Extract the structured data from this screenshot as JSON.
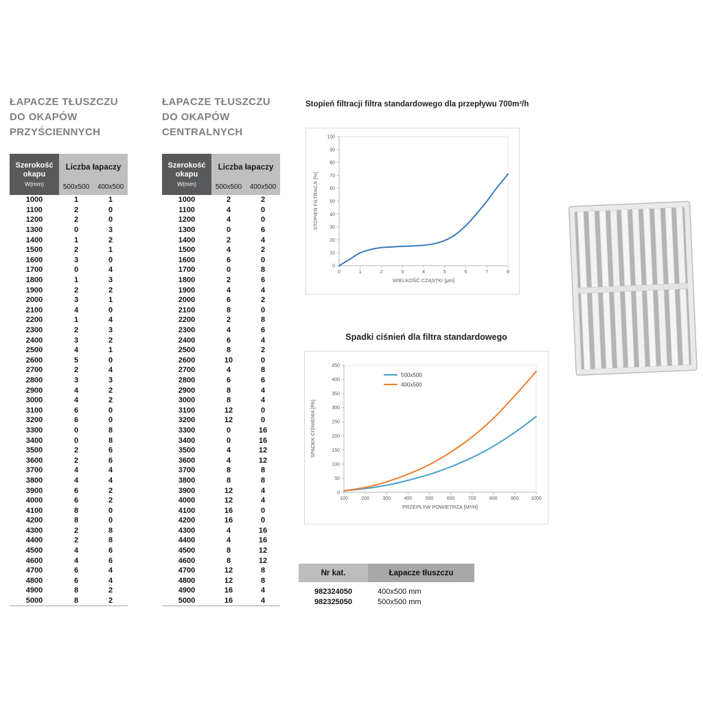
{
  "tables": {
    "wall": {
      "title_lines": [
        "ŁAPACZE TŁUSZCZU",
        "DO OKAPÓW",
        "PRZYŚCIENNYCH"
      ],
      "header": {
        "width_label": "Szerokość okapu",
        "width_unit": "W(mm)",
        "group_label": "Liczba łapaczy",
        "sub1": "500x500",
        "sub2": "400x500"
      },
      "rows": [
        [
          1000,
          1,
          1
        ],
        [
          1100,
          2,
          0
        ],
        [
          1200,
          2,
          0
        ],
        [
          1300,
          0,
          3
        ],
        [
          1400,
          1,
          2
        ],
        [
          1500,
          2,
          1
        ],
        [
          1600,
          3,
          0
        ],
        [
          1700,
          0,
          4
        ],
        [
          1800,
          1,
          3
        ],
        [
          1900,
          2,
          2
        ],
        [
          2000,
          3,
          1
        ],
        [
          2100,
          4,
          0
        ],
        [
          2200,
          1,
          4
        ],
        [
          2300,
          2,
          3
        ],
        [
          2400,
          3,
          2
        ],
        [
          2500,
          4,
          1
        ],
        [
          2600,
          5,
          0
        ],
        [
          2700,
          2,
          4
        ],
        [
          2800,
          3,
          3
        ],
        [
          2900,
          4,
          2
        ],
        [
          3000,
          4,
          2
        ],
        [
          3100,
          6,
          0
        ],
        [
          3200,
          6,
          0
        ],
        [
          3300,
          0,
          8
        ],
        [
          3400,
          0,
          8
        ],
        [
          3500,
          2,
          6
        ],
        [
          3600,
          2,
          6
        ],
        [
          3700,
          4,
          4
        ],
        [
          3800,
          4,
          4
        ],
        [
          3900,
          6,
          2
        ],
        [
          4000,
          6,
          2
        ],
        [
          4100,
          8,
          0
        ],
        [
          4200,
          8,
          0
        ],
        [
          4300,
          2,
          8
        ],
        [
          4400,
          2,
          8
        ],
        [
          4500,
          4,
          6
        ],
        [
          4600,
          4,
          6
        ],
        [
          4700,
          6,
          4
        ],
        [
          4800,
          6,
          4
        ],
        [
          4900,
          8,
          2
        ],
        [
          5000,
          8,
          2
        ]
      ]
    },
    "central": {
      "title_lines": [
        "ŁAPACZE TŁUSZCZU",
        "DO OKAPÓW",
        "CENTRALNYCH"
      ],
      "header": {
        "width_label": "Szerokość okapu",
        "width_unit": "W(mm)",
        "group_label": "Liczba łapaczy",
        "sub1": "500x500",
        "sub2": "400x500"
      },
      "rows": [
        [
          1000,
          2,
          2
        ],
        [
          1100,
          4,
          0
        ],
        [
          1200,
          4,
          0
        ],
        [
          1300,
          0,
          6
        ],
        [
          1400,
          2,
          4
        ],
        [
          1500,
          4,
          2
        ],
        [
          1600,
          6,
          0
        ],
        [
          1700,
          0,
          8
        ],
        [
          1800,
          2,
          6
        ],
        [
          1900,
          4,
          4
        ],
        [
          2000,
          6,
          2
        ],
        [
          2100,
          8,
          0
        ],
        [
          2200,
          2,
          8
        ],
        [
          2300,
          4,
          6
        ],
        [
          2400,
          6,
          4
        ],
        [
          2500,
          8,
          2
        ],
        [
          2600,
          10,
          0
        ],
        [
          2700,
          4,
          8
        ],
        [
          2800,
          6,
          6
        ],
        [
          2900,
          8,
          4
        ],
        [
          3000,
          8,
          4
        ],
        [
          3100,
          12,
          0
        ],
        [
          3200,
          12,
          0
        ],
        [
          3300,
          0,
          16
        ],
        [
          3400,
          0,
          16
        ],
        [
          3500,
          4,
          12
        ],
        [
          3600,
          4,
          12
        ],
        [
          3700,
          8,
          8
        ],
        [
          3800,
          8,
          8
        ],
        [
          3900,
          12,
          4
        ],
        [
          4000,
          12,
          4
        ],
        [
          4100,
          16,
          0
        ],
        [
          4200,
          16,
          0
        ],
        [
          4300,
          4,
          16
        ],
        [
          4400,
          4,
          16
        ],
        [
          4500,
          8,
          12
        ],
        [
          4600,
          8,
          12
        ],
        [
          4700,
          12,
          8
        ],
        [
          4800,
          12,
          8
        ],
        [
          4900,
          16,
          4
        ],
        [
          5000,
          16,
          4
        ]
      ]
    }
  },
  "chart_data": [
    {
      "type": "line",
      "title": "Stopień filtracji filtra standardowego dla przepływu 700m³/h",
      "xlabel": "WIELKOŚĆ CZĄSTKI [μm]",
      "ylabel": "STOPIEŃ FILTRACJI [%]",
      "xlim": [
        0,
        8
      ],
      "ylim": [
        0,
        100
      ],
      "xticks": [
        0,
        1,
        2,
        3,
        4,
        5,
        6,
        7,
        8
      ],
      "yticks": [
        0,
        10,
        20,
        30,
        40,
        50,
        60,
        70,
        80,
        90,
        100
      ],
      "grid": false,
      "legend_position": "none",
      "series": [
        {
          "name": "Stopień filtracji",
          "color": "#3b7bbf",
          "x": [
            0,
            0.5,
            1,
            1.5,
            2,
            2.5,
            3,
            3.5,
            4,
            4.5,
            5,
            5.5,
            6,
            6.5,
            7,
            7.5,
            8
          ],
          "y": [
            0,
            5,
            10,
            12.5,
            14,
            14.5,
            15,
            15.3,
            15.8,
            17,
            19.5,
            24,
            31,
            40,
            50,
            61,
            71
          ]
        }
      ]
    },
    {
      "type": "line",
      "title": "Spadki ciśnień dla filtra standardowego",
      "xlabel": "PRZEPŁYW POWIETRZA [M³/H]",
      "ylabel": "SPADEK CIŚNIENIA [PA]",
      "xlim": [
        100,
        1000
      ],
      "ylim": [
        0,
        450
      ],
      "xticks": [
        100,
        200,
        300,
        400,
        500,
        600,
        700,
        800,
        900,
        1000
      ],
      "yticks": [
        0,
        50,
        100,
        150,
        200,
        250,
        300,
        350,
        400,
        450
      ],
      "grid": false,
      "legend_position": "top-center",
      "series": [
        {
          "name": "500x500",
          "color": "#4aa0c8",
          "x": [
            100,
            200,
            300,
            400,
            500,
            600,
            700,
            800,
            900,
            1000
          ],
          "y": [
            5,
            13,
            25,
            42,
            63,
            90,
            123,
            163,
            212,
            268
          ]
        },
        {
          "name": "400x500",
          "color": "#ed7d31",
          "x": [
            100,
            200,
            300,
            400,
            500,
            600,
            700,
            800,
            900,
            1000
          ],
          "y": [
            5,
            17,
            37,
            64,
            98,
            142,
            196,
            262,
            342,
            428
          ]
        }
      ]
    }
  ],
  "catalog": {
    "header": {
      "col1": "Nr kat.",
      "col2": "Łapacze tłuszczu"
    },
    "rows": [
      [
        "982324050",
        "400x500 mm"
      ],
      [
        "982325050",
        "500x500 mm"
      ]
    ]
  },
  "photo": {
    "alt": "grease-filter-baffle-photo"
  }
}
